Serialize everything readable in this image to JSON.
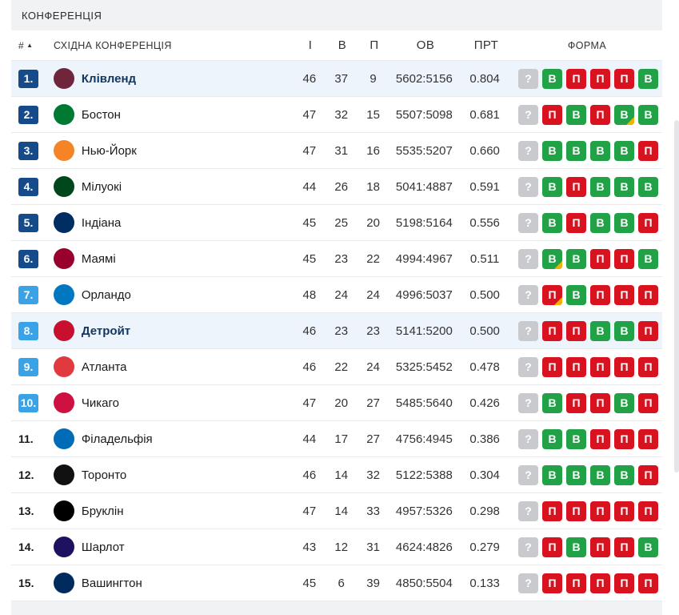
{
  "section_title": "КОНФЕРЕНЦІЯ",
  "headers": {
    "rank": "#",
    "conference": "СХІДНА КОНФЕРЕНЦІЯ",
    "games": "І",
    "wins": "В",
    "losses": "П",
    "points": "ОВ",
    "pct": "ПРТ",
    "form": "ФОРМА"
  },
  "sort_indicator": "▲",
  "colors": {
    "rank_dark": "#164b8b",
    "rank_light": "#3aa3e8",
    "win": "#22a246",
    "loss": "#d9121f",
    "unknown": "#c8cacd",
    "highlight": "#eef4fb"
  },
  "form_symbols": {
    "unknown": "?",
    "win": "В",
    "loss": "П"
  },
  "rows": [
    {
      "rank": "1.",
      "badge": "dark",
      "team": "Клівленд",
      "highlight": true,
      "logo_color": "#6f263d",
      "logo_icon": "cavaliers-logo-icon",
      "games": "46",
      "wins": "37",
      "losses": "9",
      "points": "5602:5156",
      "pct": "0.804",
      "form": [
        "win",
        "loss",
        "loss",
        "loss",
        "win"
      ],
      "form_marks": [
        false,
        false,
        false,
        false,
        false
      ]
    },
    {
      "rank": "2.",
      "badge": "dark",
      "team": "Бостон",
      "highlight": false,
      "logo_color": "#007a33",
      "logo_icon": "celtics-logo-icon",
      "games": "47",
      "wins": "32",
      "losses": "15",
      "points": "5507:5098",
      "pct": "0.681",
      "form": [
        "loss",
        "win",
        "loss",
        "win",
        "win"
      ],
      "form_marks": [
        false,
        false,
        false,
        true,
        false
      ]
    },
    {
      "rank": "3.",
      "badge": "dark",
      "team": "Нью-Йорк",
      "highlight": false,
      "logo_color": "#f58426",
      "logo_icon": "knicks-logo-icon",
      "games": "47",
      "wins": "31",
      "losses": "16",
      "points": "5535:5207",
      "pct": "0.660",
      "form": [
        "win",
        "win",
        "win",
        "win",
        "loss"
      ],
      "form_marks": [
        false,
        false,
        false,
        false,
        false
      ]
    },
    {
      "rank": "4.",
      "badge": "dark",
      "team": "Мілуокі",
      "highlight": false,
      "logo_color": "#00471b",
      "logo_icon": "bucks-logo-icon",
      "games": "44",
      "wins": "26",
      "losses": "18",
      "points": "5041:4887",
      "pct": "0.591",
      "form": [
        "win",
        "loss",
        "win",
        "win",
        "win"
      ],
      "form_marks": [
        false,
        false,
        false,
        false,
        false
      ]
    },
    {
      "rank": "5.",
      "badge": "dark",
      "team": "Індіана",
      "highlight": false,
      "logo_color": "#002d62",
      "logo_icon": "pacers-logo-icon",
      "games": "45",
      "wins": "25",
      "losses": "20",
      "points": "5198:5164",
      "pct": "0.556",
      "form": [
        "win",
        "loss",
        "win",
        "win",
        "loss"
      ],
      "form_marks": [
        false,
        false,
        false,
        false,
        false
      ]
    },
    {
      "rank": "6.",
      "badge": "dark",
      "team": "Маямі",
      "highlight": false,
      "logo_color": "#98002e",
      "logo_icon": "heat-logo-icon",
      "games": "45",
      "wins": "23",
      "losses": "22",
      "points": "4994:4967",
      "pct": "0.511",
      "form": [
        "win",
        "win",
        "loss",
        "loss",
        "win"
      ],
      "form_marks": [
        true,
        false,
        false,
        false,
        false
      ]
    },
    {
      "rank": "7.",
      "badge": "light",
      "team": "Орландо",
      "highlight": false,
      "logo_color": "#0077c0",
      "logo_icon": "magic-logo-icon",
      "games": "48",
      "wins": "24",
      "losses": "24",
      "points": "4996:5037",
      "pct": "0.500",
      "form": [
        "loss",
        "win",
        "loss",
        "loss",
        "loss"
      ],
      "form_marks": [
        true,
        false,
        false,
        false,
        false
      ]
    },
    {
      "rank": "8.",
      "badge": "light",
      "team": "Детройт",
      "highlight": true,
      "logo_color": "#c8102e",
      "logo_icon": "pistons-logo-icon",
      "games": "46",
      "wins": "23",
      "losses": "23",
      "points": "5141:5200",
      "pct": "0.500",
      "form": [
        "loss",
        "loss",
        "win",
        "win",
        "loss"
      ],
      "form_marks": [
        false,
        false,
        false,
        false,
        false
      ]
    },
    {
      "rank": "9.",
      "badge": "light",
      "team": "Атланта",
      "highlight": false,
      "logo_color": "#e03a3e",
      "logo_icon": "hawks-logo-icon",
      "games": "46",
      "wins": "22",
      "losses": "24",
      "points": "5325:5452",
      "pct": "0.478",
      "form": [
        "loss",
        "loss",
        "loss",
        "loss",
        "loss"
      ],
      "form_marks": [
        false,
        false,
        false,
        false,
        false
      ]
    },
    {
      "rank": "10.",
      "badge": "light",
      "team": "Чикаго",
      "highlight": false,
      "logo_color": "#ce1141",
      "logo_icon": "bulls-logo-icon",
      "games": "47",
      "wins": "20",
      "losses": "27",
      "points": "5485:5640",
      "pct": "0.426",
      "form": [
        "win",
        "loss",
        "loss",
        "win",
        "loss"
      ],
      "form_marks": [
        false,
        false,
        false,
        false,
        false
      ]
    },
    {
      "rank": "11.",
      "badge": "none",
      "team": "Філадельфія",
      "highlight": false,
      "logo_color": "#006bb6",
      "logo_icon": "sixers-logo-icon",
      "games": "44",
      "wins": "17",
      "losses": "27",
      "points": "4756:4945",
      "pct": "0.386",
      "form": [
        "win",
        "win",
        "loss",
        "loss",
        "loss"
      ],
      "form_marks": [
        false,
        false,
        false,
        false,
        false
      ]
    },
    {
      "rank": "12.",
      "badge": "none",
      "team": "Торонто",
      "highlight": false,
      "logo_color": "#111111",
      "logo_icon": "raptors-logo-icon",
      "games": "46",
      "wins": "14",
      "losses": "32",
      "points": "5122:5388",
      "pct": "0.304",
      "form": [
        "win",
        "win",
        "win",
        "win",
        "loss"
      ],
      "form_marks": [
        false,
        false,
        false,
        false,
        false
      ]
    },
    {
      "rank": "13.",
      "badge": "none",
      "team": "Бруклін",
      "highlight": false,
      "logo_color": "#000000",
      "logo_icon": "nets-logo-icon",
      "games": "47",
      "wins": "14",
      "losses": "33",
      "points": "4957:5326",
      "pct": "0.298",
      "form": [
        "loss",
        "loss",
        "loss",
        "loss",
        "loss"
      ],
      "form_marks": [
        false,
        false,
        false,
        false,
        false
      ]
    },
    {
      "rank": "14.",
      "badge": "none",
      "team": "Шарлот",
      "highlight": false,
      "logo_color": "#1d1160",
      "logo_icon": "hornets-logo-icon",
      "games": "43",
      "wins": "12",
      "losses": "31",
      "points": "4624:4826",
      "pct": "0.279",
      "form": [
        "loss",
        "win",
        "loss",
        "loss",
        "win"
      ],
      "form_marks": [
        false,
        false,
        false,
        false,
        false
      ]
    },
    {
      "rank": "15.",
      "badge": "none",
      "team": "Вашингтон",
      "highlight": false,
      "logo_color": "#002b5c",
      "logo_icon": "wizards-logo-icon",
      "games": "45",
      "wins": "6",
      "losses": "39",
      "points": "4850:5504",
      "pct": "0.133",
      "form": [
        "loss",
        "loss",
        "loss",
        "loss",
        "loss"
      ],
      "form_marks": [
        false,
        false,
        false,
        false,
        false
      ]
    }
  ]
}
